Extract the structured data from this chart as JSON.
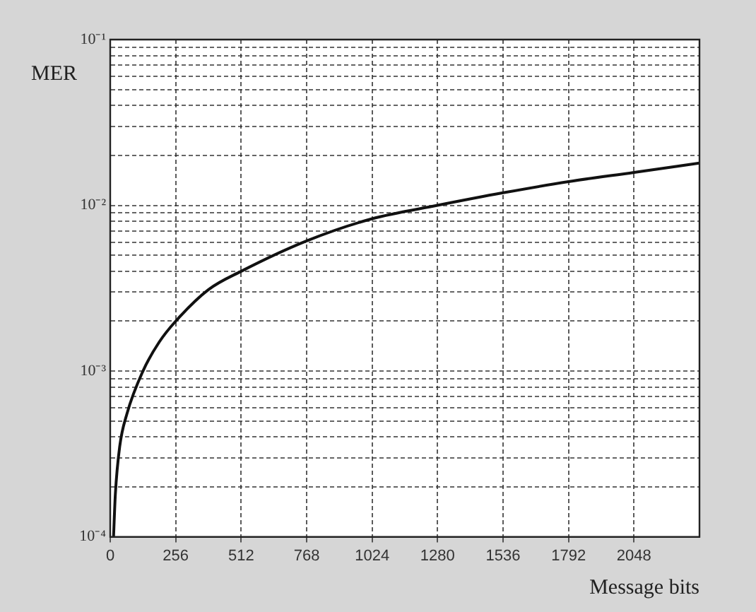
{
  "chart_data": {
    "type": "line",
    "xlabel": "Message bits",
    "ylabel": "MER",
    "log": "y",
    "grid": true,
    "marker": "none",
    "line_style": "solid",
    "xlim": [
      0,
      2304
    ],
    "xticks": [
      0,
      256,
      512,
      768,
      1024,
      1280,
      1536,
      1792,
      2048
    ],
    "ylim": [
      0.0001,
      0.1
    ],
    "yticks": [
      {
        "value": 0.0001,
        "label": "10⁻⁴"
      },
      {
        "value": 0.0002,
        "label": null
      },
      {
        "value": 0.0003,
        "label": null
      },
      {
        "value": 0.0004,
        "label": null
      },
      {
        "value": 0.0005,
        "label": null
      },
      {
        "value": 0.0006,
        "label": null
      },
      {
        "value": 0.0007,
        "label": null
      },
      {
        "value": 0.0008,
        "label": null
      },
      {
        "value": 0.0009,
        "label": null
      },
      {
        "value": 0.001,
        "label": "10⁻³"
      },
      {
        "value": 0.002,
        "label": null
      },
      {
        "value": 0.003,
        "label": null
      },
      {
        "value": 0.004,
        "label": null
      },
      {
        "value": 0.005,
        "label": null
      },
      {
        "value": 0.006,
        "label": null
      },
      {
        "value": 0.007,
        "label": null
      },
      {
        "value": 0.008,
        "label": null
      },
      {
        "value": 0.009,
        "label": null
      },
      {
        "value": 0.01,
        "label": "10⁻²"
      },
      {
        "value": 0.02,
        "label": null
      },
      {
        "value": 0.03,
        "label": null
      },
      {
        "value": 0.04,
        "label": null
      },
      {
        "value": 0.05,
        "label": null
      },
      {
        "value": 0.06,
        "label": null
      },
      {
        "value": 0.07,
        "label": null
      },
      {
        "value": 0.08,
        "label": null
      },
      {
        "value": 0.09,
        "label": null
      },
      {
        "value": 0.1,
        "label": "10⁻¹"
      }
    ],
    "legend": false,
    "x": [
      13,
      20,
      37,
      65,
      128,
      192,
      256,
      384,
      512,
      768,
      1024,
      1280,
      1536,
      1792,
      2048,
      2304
    ],
    "series": [
      {
        "color": "#111111",
        "values": [
          0.0001,
          0.00018,
          0.00035,
          0.00055,
          0.001,
          0.0015,
          0.002,
          0.0031,
          0.004,
          0.0061,
          0.0083,
          0.01,
          0.0119,
          0.0139,
          0.0158,
          0.018
        ]
      }
    ]
  }
}
